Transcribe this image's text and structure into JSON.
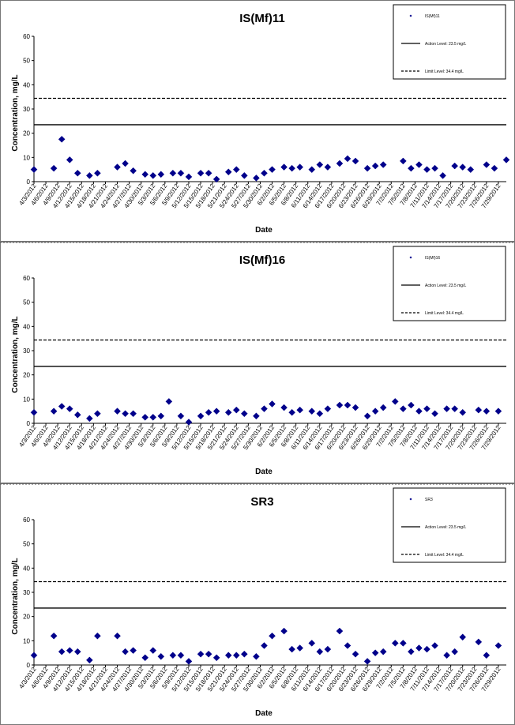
{
  "chart_data": [
    {
      "type": "scatter",
      "title": "IS(Mf)11",
      "xlabel": "Date",
      "ylabel": "Concentration, mg/L",
      "ylim": [
        0,
        60
      ],
      "yticks": [
        0,
        10,
        20,
        30,
        40,
        50,
        60
      ],
      "xlim": [
        "2012-04-03",
        "2012-07-31"
      ],
      "xticks": [
        "4/3/2012",
        "4/6/2012",
        "4/9/2012",
        "4/12/2012",
        "4/15/2012",
        "4/18/2012",
        "4/21/2012",
        "4/24/2012",
        "4/27/2012",
        "4/30/2012",
        "5/3/2012",
        "5/6/2012",
        "5/9/2012",
        "5/12/2012",
        "5/15/2012",
        "5/18/2012",
        "5/21/2012",
        "5/24/2012",
        "5/27/2012",
        "5/30/2012",
        "6/2/2012",
        "6/5/2012",
        "6/8/2012",
        "6/11/2012",
        "6/14/2012",
        "6/17/2012",
        "6/20/2012",
        "6/23/2012",
        "6/26/2012",
        "6/29/2012",
        "7/2/2012",
        "7/5/2012",
        "7/8/2012",
        "7/11/2012",
        "7/14/2012",
        "7/17/2012",
        "7/20/2012",
        "7/23/2012",
        "7/26/2012",
        "7/29/2012"
      ],
      "grid": false,
      "legend_position": "top-right",
      "series": [
        {
          "name": "IS(Mf)11",
          "kind": "points",
          "color": "#00008b",
          "x": [
            "2012-04-03",
            "2012-04-08",
            "2012-04-10",
            "2012-04-12",
            "2012-04-14",
            "2012-04-17",
            "2012-04-19",
            "2012-04-24",
            "2012-04-26",
            "2012-04-28",
            "2012-05-01",
            "2012-05-03",
            "2012-05-05",
            "2012-05-08",
            "2012-05-10",
            "2012-05-12",
            "2012-05-15",
            "2012-05-17",
            "2012-05-19",
            "2012-05-22",
            "2012-05-24",
            "2012-05-26",
            "2012-05-29",
            "2012-05-31",
            "2012-06-02",
            "2012-06-05",
            "2012-06-07",
            "2012-06-09",
            "2012-06-12",
            "2012-06-14",
            "2012-06-16",
            "2012-06-19",
            "2012-06-21",
            "2012-06-23",
            "2012-06-26",
            "2012-06-28",
            "2012-06-30",
            "2012-07-05",
            "2012-07-07",
            "2012-07-09",
            "2012-07-11",
            "2012-07-13",
            "2012-07-15",
            "2012-07-18",
            "2012-07-20",
            "2012-07-22",
            "2012-07-26",
            "2012-07-28",
            "2012-07-31"
          ],
          "y": [
            5,
            5.5,
            17.5,
            9,
            3.5,
            2.5,
            3.5,
            6,
            7.5,
            4.5,
            3,
            2.5,
            3,
            3.5,
            3.5,
            2,
            3.5,
            3.5,
            1,
            4,
            5,
            2.5,
            1.5,
            3.5,
            5,
            6,
            5.5,
            6,
            5,
            7,
            6,
            7.5,
            9.5,
            8.5,
            5.5,
            6.5,
            7,
            8.5,
            5.5,
            7,
            5,
            5.5,
            2.5,
            6.5,
            6,
            5,
            7,
            5.5,
            9
          ]
        },
        {
          "name": "Action Level: 23.5 mg/L",
          "kind": "hline",
          "y": 23.5,
          "style": "solid"
        },
        {
          "name": "Limit Level: 34.4 mg/L",
          "kind": "hline",
          "y": 34.4,
          "style": "dashed"
        }
      ]
    },
    {
      "type": "scatter",
      "title": "IS(Mf)16",
      "xlabel": "Date",
      "ylabel": "Concentration, mg/L",
      "ylim": [
        0,
        60
      ],
      "yticks": [
        0,
        10,
        20,
        30,
        40,
        50,
        60
      ],
      "xlim": [
        "2012-04-03",
        "2012-07-31"
      ],
      "xticks": [
        "4/3/2012",
        "4/6/2012",
        "4/9/2012",
        "4/12/2012",
        "4/15/2012",
        "4/18/2012",
        "4/21/2012",
        "4/24/2012",
        "4/27/2012",
        "4/30/2012",
        "5/3/2012",
        "5/6/2012",
        "5/9/2012",
        "5/12/2012",
        "5/15/2012",
        "5/18/2012",
        "5/21/2012",
        "5/24/2012",
        "5/27/2012",
        "5/30/2012",
        "6/2/2012",
        "6/5/2012",
        "6/8/2012",
        "6/11/2012",
        "6/14/2012",
        "6/17/2012",
        "6/20/2012",
        "6/23/2012",
        "6/26/2012",
        "6/29/2012",
        "7/2/2012",
        "7/5/2012",
        "7/8/2012",
        "7/11/2012",
        "7/14/2012",
        "7/17/2012",
        "7/20/2012",
        "7/23/2012",
        "7/26/2012",
        "7/29/2012"
      ],
      "grid": false,
      "legend_position": "top-right",
      "series": [
        {
          "name": "IS(Mf)16",
          "kind": "points",
          "color": "#00008b",
          "x": [
            "2012-04-03",
            "2012-04-08",
            "2012-04-10",
            "2012-04-12",
            "2012-04-14",
            "2012-04-17",
            "2012-04-19",
            "2012-04-24",
            "2012-04-26",
            "2012-04-28",
            "2012-05-01",
            "2012-05-03",
            "2012-05-05",
            "2012-05-07",
            "2012-05-10",
            "2012-05-12",
            "2012-05-15",
            "2012-05-17",
            "2012-05-19",
            "2012-05-22",
            "2012-05-24",
            "2012-05-26",
            "2012-05-29",
            "2012-05-31",
            "2012-06-02",
            "2012-06-05",
            "2012-06-07",
            "2012-06-09",
            "2012-06-12",
            "2012-06-14",
            "2012-06-16",
            "2012-06-19",
            "2012-06-21",
            "2012-06-23",
            "2012-06-26",
            "2012-06-28",
            "2012-06-30",
            "2012-07-03",
            "2012-07-05",
            "2012-07-07",
            "2012-07-09",
            "2012-07-11",
            "2012-07-13",
            "2012-07-16",
            "2012-07-18",
            "2012-07-20",
            "2012-07-24",
            "2012-07-26",
            "2012-07-29"
          ],
          "y": [
            4.5,
            5,
            7,
            6,
            3.5,
            2,
            4,
            5,
            4,
            4,
            2.5,
            2.5,
            3,
            9,
            3,
            0.5,
            3,
            4.5,
            5,
            4.5,
            5.5,
            4,
            3,
            6,
            8,
            6.5,
            4.5,
            5.5,
            5,
            4,
            6,
            7.5,
            7.5,
            6.5,
            3,
            5,
            6.5,
            9,
            6,
            7.5,
            5,
            6,
            4,
            6,
            6,
            4.5,
            5.5,
            5,
            5
          ]
        },
        {
          "name": "Action Level: 23.5 mg/L",
          "kind": "hline",
          "y": 23.5,
          "style": "solid"
        },
        {
          "name": "Limit Level: 34.4 mg/L",
          "kind": "hline",
          "y": 34.4,
          "style": "dashed"
        }
      ]
    },
    {
      "type": "scatter",
      "title": "SR3",
      "xlabel": "Date",
      "ylabel": "Concentration, mg/L",
      "ylim": [
        0,
        60
      ],
      "yticks": [
        0,
        10,
        20,
        30,
        40,
        50,
        60
      ],
      "xlim": [
        "2012-04-03",
        "2012-07-31"
      ],
      "xticks": [
        "4/3/2012",
        "4/6/2012",
        "4/9/2012",
        "4/12/2012",
        "4/15/2012",
        "4/18/2012",
        "4/21/2012",
        "4/24/2012",
        "4/27/2012",
        "4/30/2012",
        "5/3/2012",
        "5/6/2012",
        "5/9/2012",
        "5/12/2012",
        "5/15/2012",
        "5/18/2012",
        "5/21/2012",
        "5/24/2012",
        "5/27/2012",
        "5/30/2012",
        "6/2/2012",
        "6/5/2012",
        "6/8/2012",
        "6/11/2012",
        "6/14/2012",
        "6/17/2012",
        "6/20/2012",
        "6/23/2012",
        "6/26/2012",
        "6/29/2012",
        "7/2/2012",
        "7/5/2012",
        "7/8/2012",
        "7/11/2012",
        "7/14/2012",
        "7/17/2012",
        "7/20/2012",
        "7/23/2012",
        "7/26/2012",
        "7/29/2012"
      ],
      "grid": false,
      "legend_position": "top-right",
      "series": [
        {
          "name": "SR3",
          "kind": "points",
          "color": "#00008b",
          "x": [
            "2012-04-03",
            "2012-04-08",
            "2012-04-10",
            "2012-04-12",
            "2012-04-14",
            "2012-04-17",
            "2012-04-19",
            "2012-04-24",
            "2012-04-26",
            "2012-04-28",
            "2012-05-01",
            "2012-05-03",
            "2012-05-05",
            "2012-05-08",
            "2012-05-10",
            "2012-05-12",
            "2012-05-15",
            "2012-05-17",
            "2012-05-19",
            "2012-05-22",
            "2012-05-24",
            "2012-05-26",
            "2012-05-29",
            "2012-05-31",
            "2012-06-02",
            "2012-06-05",
            "2012-06-07",
            "2012-06-09",
            "2012-06-12",
            "2012-06-14",
            "2012-06-16",
            "2012-06-19",
            "2012-06-21",
            "2012-06-23",
            "2012-06-26",
            "2012-06-28",
            "2012-06-30",
            "2012-07-03",
            "2012-07-05",
            "2012-07-07",
            "2012-07-09",
            "2012-07-11",
            "2012-07-13",
            "2012-07-16",
            "2012-07-18",
            "2012-07-20",
            "2012-07-24",
            "2012-07-26",
            "2012-07-29"
          ],
          "y": [
            4,
            12,
            5.5,
            6,
            5.5,
            2,
            12,
            12,
            5.5,
            6,
            3,
            6,
            3.5,
            4,
            4,
            1.5,
            4.5,
            4.5,
            3,
            4,
            4,
            4.5,
            3.5,
            8,
            12,
            14,
            6.5,
            7,
            9,
            5.5,
            6.5,
            14,
            8,
            4.5,
            1.5,
            5,
            5.5,
            9,
            9,
            5.5,
            7,
            6.5,
            8,
            4,
            5.5,
            11.5,
            9.5,
            4,
            8
          ]
        },
        {
          "name": "Action Level: 23.5 mg/L",
          "kind": "hline",
          "y": 23.5,
          "style": "solid"
        },
        {
          "name": "Limit Level: 34.4 mg/L",
          "kind": "hline",
          "y": 34.4,
          "style": "dashed"
        }
      ]
    }
  ]
}
